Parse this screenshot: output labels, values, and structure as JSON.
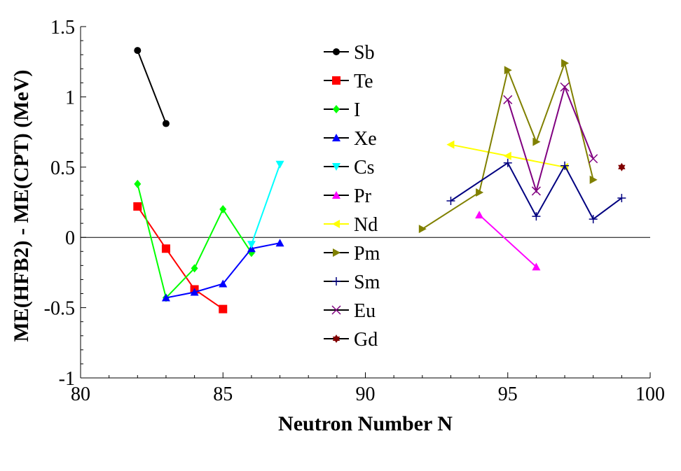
{
  "chart_data": {
    "type": "line",
    "title": "",
    "xlabel": "Neutron Number N",
    "ylabel": "ME(HFB2) - ME(CPT) (MeV)",
    "xlim": [
      80,
      100
    ],
    "ylim": [
      -1,
      1.5
    ],
    "x_ticks": [
      80,
      85,
      90,
      95,
      100
    ],
    "x_tick_labels": [
      "80",
      "85",
      "90",
      "95",
      "100"
    ],
    "y_ticks": [
      -1,
      -0.5,
      0,
      0.5,
      1,
      1.5
    ],
    "y_tick_labels": [
      "-1",
      "-0.5",
      "0",
      "0.5",
      "1",
      "1.5"
    ],
    "zero_line": true,
    "grid": false,
    "legend_position": "top-center",
    "series": [
      {
        "name": "Sb",
        "color": "#000000",
        "marker": "circle",
        "x": [
          82,
          83
        ],
        "y": [
          1.33,
          0.81
        ]
      },
      {
        "name": "Te",
        "color": "#ff0000",
        "marker": "square",
        "x": [
          82,
          83,
          84,
          85
        ],
        "y": [
          0.22,
          -0.08,
          -0.37,
          -0.51
        ]
      },
      {
        "name": "I",
        "color": "#00ff00",
        "marker": "diamond",
        "x": [
          82,
          83,
          84,
          85,
          86
        ],
        "y": [
          0.38,
          -0.43,
          -0.22,
          0.2,
          -0.11
        ]
      },
      {
        "name": "Xe",
        "color": "#0000ff",
        "marker": "triangle-up",
        "x": [
          83,
          84,
          85,
          86,
          87
        ],
        "y": [
          -0.43,
          -0.39,
          -0.33,
          -0.08,
          -0.04
        ]
      },
      {
        "name": "Cs",
        "color": "#00ffff",
        "marker": "triangle-down",
        "x": [
          86,
          87
        ],
        "y": [
          -0.05,
          0.52
        ]
      },
      {
        "name": "Pr",
        "color": "#ff00ff",
        "marker": "triangle-up",
        "x": [
          94,
          96
        ],
        "y": [
          0.16,
          -0.21
        ]
      },
      {
        "name": "Nd",
        "color": "#ffff00",
        "marker": "triangle-left",
        "x": [
          93,
          95,
          97
        ],
        "y": [
          0.66,
          0.58,
          0.5
        ]
      },
      {
        "name": "Pm",
        "color": "#808000",
        "marker": "triangle-right",
        "x": [
          92,
          94,
          95,
          96,
          97,
          98
        ],
        "y": [
          0.06,
          0.32,
          1.19,
          0.68,
          1.24,
          0.41
        ]
      },
      {
        "name": "Sm",
        "color": "#000080",
        "marker": "plus",
        "x": [
          93,
          95,
          96,
          97,
          98,
          99
        ],
        "y": [
          0.26,
          0.53,
          0.15,
          0.51,
          0.13,
          0.28
        ]
      },
      {
        "name": "Eu",
        "color": "#800080",
        "marker": "x",
        "x": [
          95,
          96,
          97,
          98
        ],
        "y": [
          0.98,
          0.33,
          1.07,
          0.56
        ]
      },
      {
        "name": "Gd",
        "color": "#800000",
        "marker": "star",
        "x": [
          99
        ],
        "y": [
          0.5
        ]
      }
    ]
  }
}
